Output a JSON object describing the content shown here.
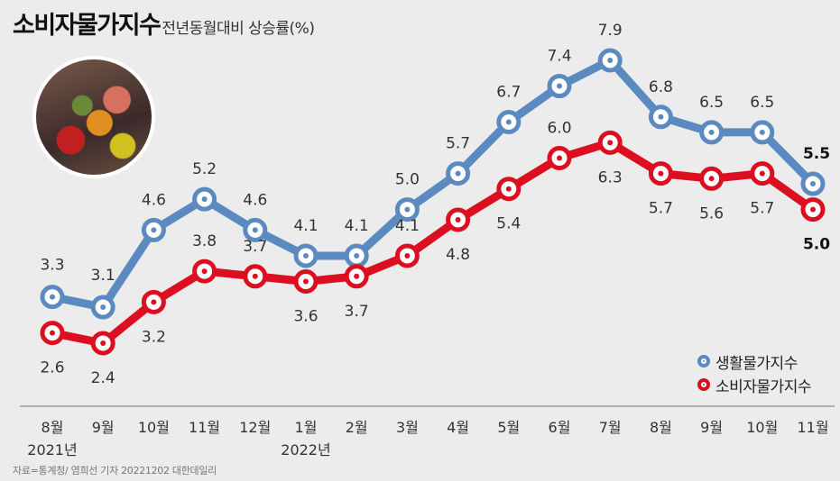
{
  "title": {
    "main": "소비자물가지수",
    "sub": "전년동월대비 상승률(%)"
  },
  "source": "자료=통계청/ 염희선 기자 20221202 대한데일리",
  "photo": {
    "description_icon": "grocery-food-photo"
  },
  "colors": {
    "blue": "#5a8ac0",
    "red": "#dc0f21",
    "grid": "#b0b0b0"
  },
  "legend": [
    {
      "name": "생활물가지수",
      "color": "blue"
    },
    {
      "name": "소비자물가지수",
      "color": "red"
    }
  ],
  "chart_data": {
    "type": "line",
    "categories": [
      "8월",
      "9월",
      "10월",
      "11월",
      "12월",
      "1월",
      "2월",
      "3월",
      "4월",
      "5월",
      "6월",
      "7월",
      "8월",
      "9월",
      "10월",
      "11월"
    ],
    "year_labels": [
      {
        "index": 0,
        "text": "2021년"
      },
      {
        "index": 5,
        "text": "2022년"
      }
    ],
    "series": [
      {
        "name": "생활물가지수",
        "color": "#5a8ac0",
        "values": [
          3.3,
          3.1,
          4.6,
          5.2,
          4.6,
          4.1,
          4.1,
          5.0,
          5.7,
          6.7,
          7.4,
          7.9,
          6.8,
          6.5,
          6.5,
          5.5
        ]
      },
      {
        "name": "소비자물가지수",
        "color": "#dc0f21",
        "values": [
          2.6,
          2.4,
          3.2,
          3.8,
          3.7,
          3.6,
          3.7,
          4.1,
          4.8,
          5.4,
          6.0,
          6.3,
          5.7,
          5.6,
          5.7,
          5.0
        ]
      }
    ],
    "grid": false,
    "legend_position": "bottom-right"
  }
}
